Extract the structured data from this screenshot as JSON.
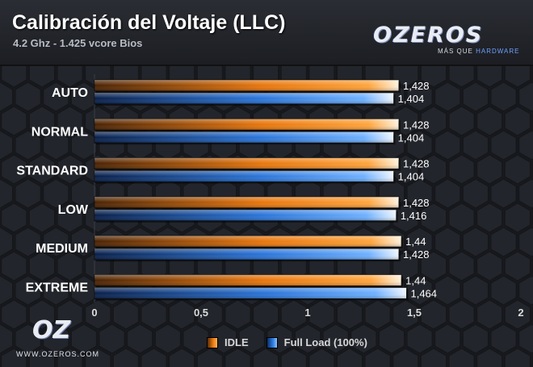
{
  "header": {
    "title": "Calibración del Voltaje (LLC)",
    "subtitle": "4.2 Ghz - 1.425 vcore Bios",
    "brand": "OZEROS",
    "brand_tag_a": "MÁS QUE ",
    "brand_tag_b": "HARDWARE"
  },
  "footer": {
    "logo": "OZ",
    "url": "WWW.OZEROS.COM"
  },
  "colors": {
    "idle": "#f07d10",
    "full_load": "#2f7fe3",
    "background": "#1b1d22"
  },
  "chart_data": {
    "type": "bar",
    "orientation": "horizontal",
    "categories": [
      "AUTO",
      "NORMAL",
      "STANDARD",
      "LOW",
      "MEDIUM",
      "EXTREME"
    ],
    "series": [
      {
        "name": "IDLE",
        "values": [
          1.428,
          1.428,
          1.428,
          1.428,
          1.44,
          1.44
        ],
        "labels": [
          "1,428",
          "1,428",
          "1,428",
          "1,428",
          "1,44",
          "1,44"
        ]
      },
      {
        "name": "Full Load (100%)",
        "values": [
          1.404,
          1.404,
          1.404,
          1.416,
          1.428,
          1.464
        ],
        "labels": [
          "1,404",
          "1,404",
          "1,404",
          "1,416",
          "1,428",
          "1,464"
        ]
      }
    ],
    "xlim": [
      0,
      2
    ],
    "xticks": [
      0,
      0.5,
      1,
      1.5,
      2
    ],
    "xtick_labels": [
      "0",
      "0,5",
      "1",
      "1,5",
      "2"
    ],
    "title": "Calibración del Voltaje (LLC)",
    "subtitle": "4.2 Ghz - 1.425 vcore Bios",
    "legend_position": "bottom-center",
    "grid": false
  }
}
